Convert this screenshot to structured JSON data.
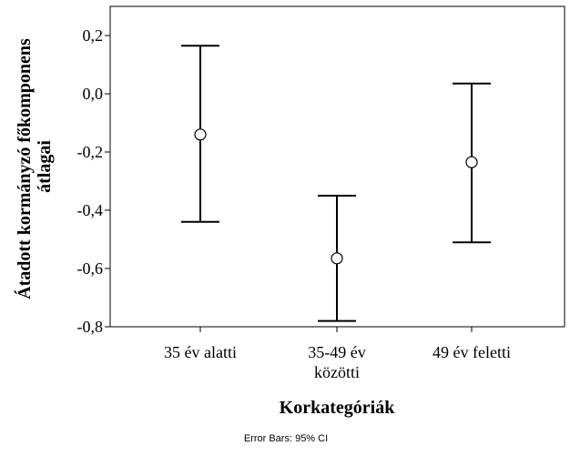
{
  "chart_data": {
    "type": "errorbar",
    "categories": [
      [
        "35 év alatti"
      ],
      [
        "35-49 év",
        "közötti"
      ],
      [
        "49 év feletti"
      ]
    ],
    "means": [
      -0.14,
      -0.565,
      -0.235
    ],
    "ci_lower": [
      -0.44,
      -0.78,
      -0.51
    ],
    "ci_upper": [
      0.165,
      -0.35,
      0.035
    ],
    "xlabel": "Korkategóriák",
    "ylabel_lines": [
      "Átadott kormányzó főkomponens",
      "átlagai"
    ],
    "ylim": [
      -0.8,
      0.3
    ],
    "yticks": [
      -0.8,
      -0.6,
      -0.4,
      -0.2,
      0.0,
      0.2
    ],
    "ytick_labels": [
      "-0,8",
      "-0,6",
      "-0,4",
      "-0,2",
      "0,0",
      "0,2"
    ],
    "footnote": "Error Bars: 95% CI",
    "grid": false,
    "legend": "none"
  }
}
